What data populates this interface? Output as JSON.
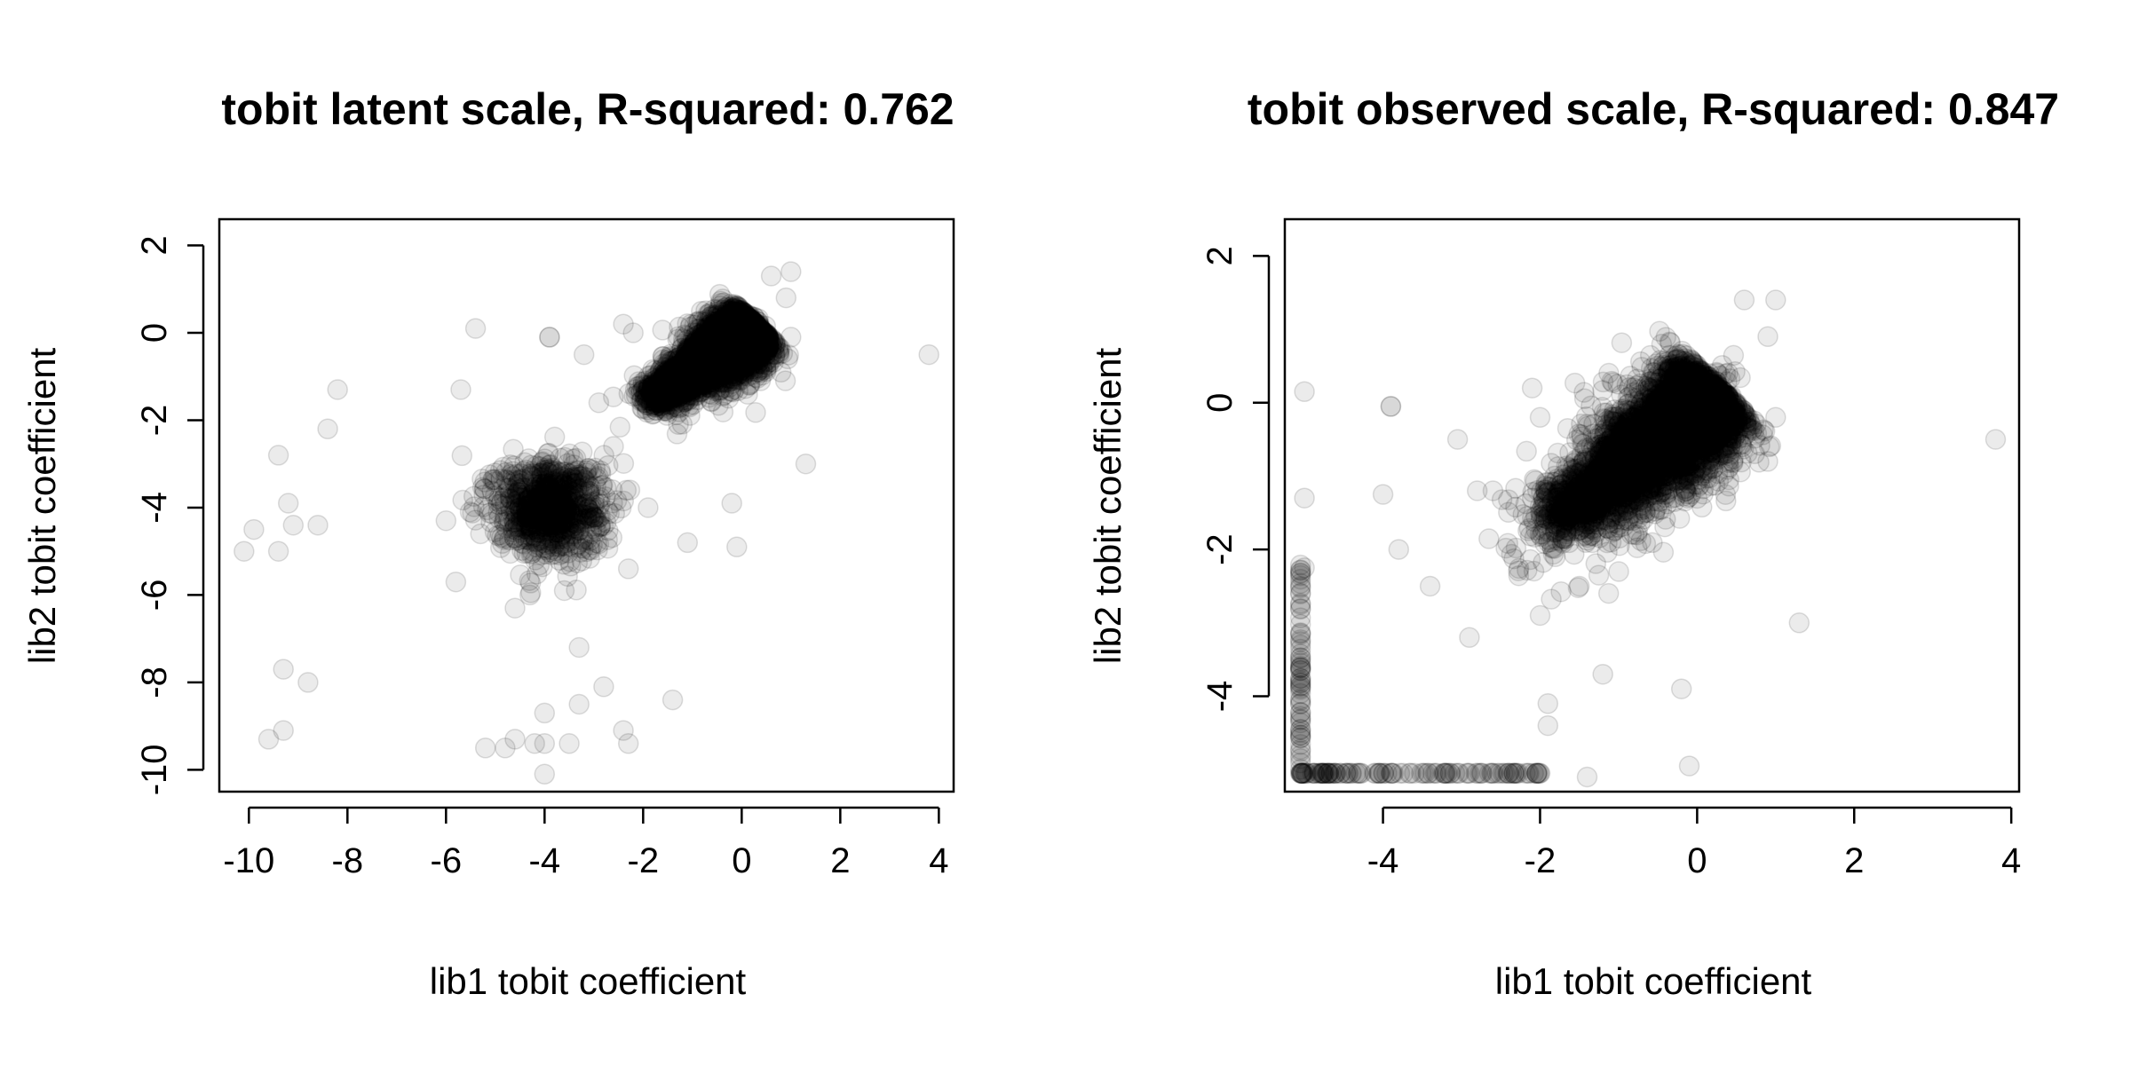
{
  "chart_data": [
    {
      "type": "scatter",
      "title": "tobit latent scale, R-squared: 0.762",
      "xlabel": "lib1 tobit coefficient",
      "ylabel": "lib2 tobit coefficient",
      "xlim": [
        -10.6,
        4.3
      ],
      "ylim": [
        -10.5,
        2.6
      ],
      "xticks": [
        -10,
        -8,
        -6,
        -4,
        -2,
        0,
        2,
        4
      ],
      "yticks": [
        -10,
        -8,
        -6,
        -4,
        -2,
        0,
        2
      ],
      "xtick_labels": [
        "-10",
        "-8",
        "-6",
        "-4",
        "-2",
        "0",
        "2",
        "4"
      ],
      "ytick_labels": [
        "-10",
        "-8",
        "-6",
        "-4",
        "-2",
        "0",
        "2"
      ],
      "grid": false,
      "legend": "none",
      "point_color": "#000000",
      "point_alpha": 0.08,
      "series": [
        {
          "dense_trend": {
            "from": [
              -4.2,
              -4.0
            ],
            "to": [
              0.3,
              0.2
            ],
            "sd_along": 0.9,
            "sd_perp": 0.35,
            "points": 2600
          },
          "dense_core": {
            "from": [
              -1.8,
              -1.5
            ],
            "to": [
              0.2,
              0.1
            ],
            "points": 1800
          },
          "blob": {
            "center": [
              -3.9,
              -4.0
            ],
            "sd": [
              0.55,
              0.55
            ],
            "points": 900
          },
          "points": [
            [
              -10.1,
              -5.0
            ],
            [
              -9.9,
              -4.5
            ],
            [
              -9.4,
              -5.0
            ],
            [
              -9.4,
              -2.8
            ],
            [
              -9.2,
              -3.9
            ],
            [
              -9.1,
              -4.4
            ],
            [
              -8.6,
              -4.4
            ],
            [
              -8.4,
              -2.2
            ],
            [
              -8.2,
              -1.3
            ],
            [
              -9.3,
              -7.7
            ],
            [
              -8.8,
              -8.0
            ],
            [
              -9.6,
              -9.3
            ],
            [
              -9.3,
              -9.1
            ],
            [
              -5.4,
              0.1
            ],
            [
              -5.7,
              -1.3
            ],
            [
              -6.0,
              -4.3
            ],
            [
              -5.8,
              -5.7
            ],
            [
              -5.2,
              -9.5
            ],
            [
              -4.8,
              -9.5
            ],
            [
              -4.6,
              -9.3
            ],
            [
              -4.2,
              -9.4
            ],
            [
              -4.0,
              -9.4
            ],
            [
              -3.5,
              -9.4
            ],
            [
              -4.0,
              -10.1
            ],
            [
              -4.0,
              -8.7
            ],
            [
              -3.3,
              -8.5
            ],
            [
              -2.8,
              -8.1
            ],
            [
              -2.4,
              -9.1
            ],
            [
              -2.3,
              -9.4
            ],
            [
              -1.4,
              -8.4
            ],
            [
              -3.3,
              -7.2
            ],
            [
              -3.9,
              -0.1
            ],
            [
              -3.9,
              -0.1
            ],
            [
              -2.3,
              -5.4
            ],
            [
              -1.9,
              -4.0
            ],
            [
              -1.1,
              -4.8
            ],
            [
              -0.2,
              -3.9
            ],
            [
              -0.1,
              -4.9
            ],
            [
              1.3,
              -3.0
            ],
            [
              3.8,
              -0.5
            ],
            [
              0.6,
              1.3
            ],
            [
              1.0,
              1.4
            ],
            [
              0.9,
              0.8
            ],
            [
              1.0,
              -0.1
            ],
            [
              0.8,
              -0.9
            ],
            [
              -2.4,
              0.2
            ],
            [
              -2.2,
              0.0
            ],
            [
              -3.2,
              -0.5
            ],
            [
              -4.6,
              -6.3
            ],
            [
              -4.3,
              -6.0
            ],
            [
              -3.6,
              -5.9
            ],
            [
              -5.3,
              -4.6
            ],
            [
              -2.6,
              -2.6
            ],
            [
              -2.9,
              -1.6
            ]
          ]
        }
      ]
    },
    {
      "type": "scatter",
      "title": "tobit observed scale, R-squared: 0.847",
      "xlabel": "lib1 tobit coefficient",
      "ylabel": "lib2 tobit coefficient",
      "xlim": [
        -5.25,
        4.1
      ],
      "ylim": [
        -5.3,
        2.5
      ],
      "xticks": [
        -4,
        -2,
        0,
        2,
        4
      ],
      "yticks": [
        -4,
        -2,
        0,
        2
      ],
      "xtick_labels": [
        "-4",
        "-2",
        "0",
        "2",
        "4"
      ],
      "ytick_labels": [
        "-4",
        "-2",
        "0",
        "2"
      ],
      "grid": false,
      "legend": "none",
      "point_color": "#000000",
      "point_alpha": 0.08,
      "censor_value": -5.05,
      "series": [
        {
          "dense_trend": {
            "from": [
              -4.5,
              -4.5
            ],
            "to": [
              0.3,
              0.2
            ],
            "sd_along": 1.1,
            "sd_perp": 0.35,
            "points": 3200
          },
          "dense_core": {
            "from": [
              -1.8,
              -1.6
            ],
            "to": [
              0.2,
              0.1
            ],
            "points": 1800
          },
          "censored_bottom": {
            "x_range": [
              -5.05,
              -2.0
            ],
            "y": -5.05,
            "points": 120
          },
          "censored_left": {
            "x": -5.05,
            "y_range": [
              -5.05,
              -2.2
            ],
            "points": 70
          },
          "points": [
            [
              -5.0,
              0.15
            ],
            [
              -5.0,
              -1.3
            ],
            [
              -5.0,
              -2.25
            ],
            [
              -3.9,
              -0.05
            ],
            [
              -3.9,
              -0.05
            ],
            [
              -3.05,
              -0.5
            ],
            [
              -4.0,
              -1.25
            ],
            [
              -2.0,
              -0.2
            ],
            [
              -2.1,
              0.2
            ],
            [
              -2.6,
              -1.2
            ],
            [
              -1.9,
              -4.1
            ],
            [
              -1.9,
              -4.4
            ],
            [
              -1.2,
              -3.7
            ],
            [
              -1.4,
              -5.1
            ],
            [
              -0.2,
              -3.9
            ],
            [
              -0.1,
              -4.95
            ],
            [
              1.3,
              -3.0
            ],
            [
              3.8,
              -0.5
            ],
            [
              0.6,
              1.4
            ],
            [
              1.0,
              1.4
            ],
            [
              0.9,
              0.9
            ],
            [
              1.0,
              -0.2
            ],
            [
              0.9,
              -0.8
            ],
            [
              -2.9,
              -3.2
            ],
            [
              -2.45,
              -5.05
            ],
            [
              -2.3,
              -5.05
            ],
            [
              -2.0,
              -5.05
            ],
            [
              -3.6,
              -5.05
            ],
            [
              -4.4,
              -5.05
            ],
            [
              -4.6,
              -5.05
            ],
            [
              -2.8,
              -1.2
            ],
            [
              -3.4,
              -2.5
            ],
            [
              -3.8,
              -2.0
            ],
            [
              -2.0,
              -2.9
            ],
            [
              -1.5,
              -2.5
            ]
          ]
        }
      ]
    }
  ]
}
